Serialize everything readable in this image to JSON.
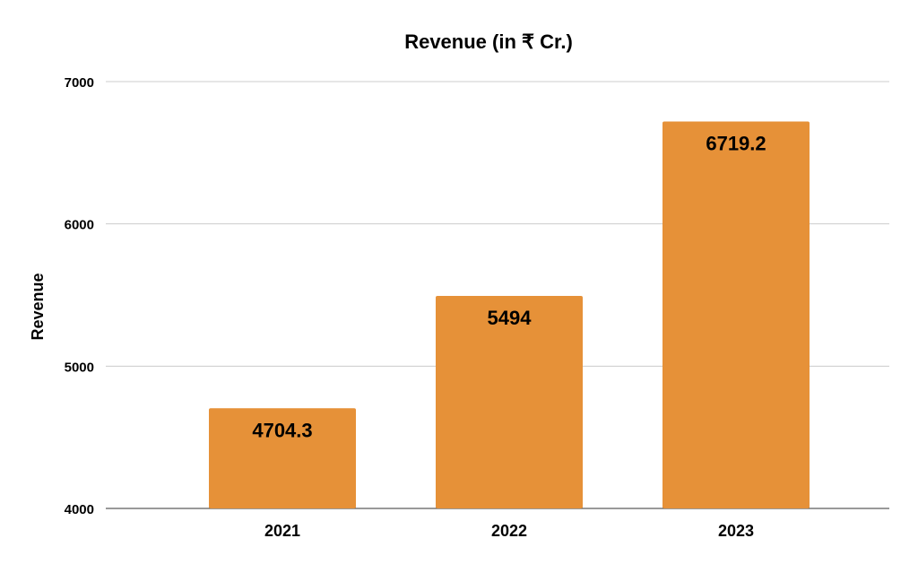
{
  "chart_data": {
    "type": "bar",
    "title": "Revenue (in ₹ Cr.)",
    "xlabel": "",
    "ylabel": "Revenue",
    "categories": [
      "2021",
      "2022",
      "2023"
    ],
    "values": [
      4704.3,
      5494,
      6719.2
    ],
    "value_labels": [
      "4704.3",
      "5494",
      "6719.2"
    ],
    "ylim": [
      4000,
      7000
    ],
    "yticks": [
      4000,
      5000,
      6000,
      7000
    ],
    "ytick_labels": [
      "4000",
      "5000",
      "6000",
      "7000"
    ],
    "grid": true,
    "legend": "none",
    "bar_color": "#E69138"
  }
}
